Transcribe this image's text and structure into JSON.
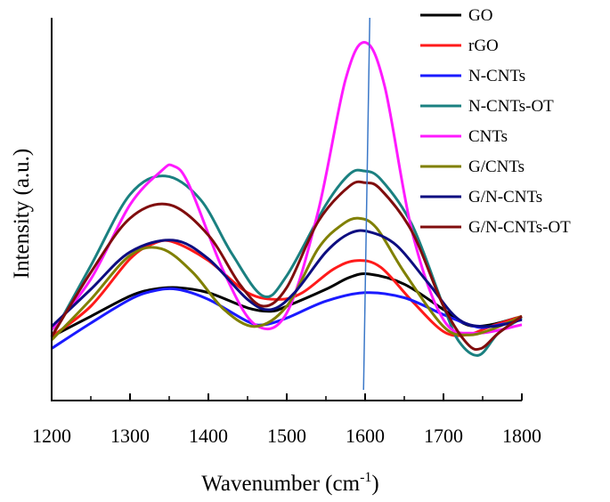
{
  "chart_data": {
    "type": "line",
    "title": "",
    "xlabel": "Wavenumber (cm",
    "xlabel_sup": "-1",
    "xlabel_end": ")",
    "ylabel": "Intensity (a.u.)",
    "xlim": [
      1200,
      1800
    ],
    "ylim": [
      0,
      1
    ],
    "x_ticks": [
      1200,
      1300,
      1400,
      1500,
      1600,
      1700,
      1800
    ],
    "x_tick_labels": [
      "1200",
      "1300",
      "1400",
      "1500",
      "1600",
      "1700",
      "1800"
    ],
    "y_ticks_shown": false,
    "legend_position": "top-right",
    "reference_line": {
      "x": 1598,
      "color": "#3b78c8"
    },
    "baseline": [
      1200,
      1300,
      1400,
      1500,
      1600,
      1700,
      1800
    ],
    "series": [
      {
        "name": "GO",
        "color": "#000000",
        "x": [
          1200,
          1250,
          1300,
          1330,
          1360,
          1400,
          1450,
          1480,
          1500,
          1550,
          1580,
          1605,
          1650,
          1700,
          1730,
          1760,
          1800
        ],
        "y": [
          0.11,
          0.17,
          0.23,
          0.25,
          0.255,
          0.24,
          0.195,
          0.185,
          0.2,
          0.25,
          0.285,
          0.295,
          0.265,
          0.19,
          0.145,
          0.145,
          0.17
        ]
      },
      {
        "name": "rGO",
        "color": "#ff1a1a",
        "x": [
          1200,
          1250,
          1300,
          1330,
          1355,
          1400,
          1450,
          1490,
          1520,
          1560,
          1590,
          1620,
          1660,
          1700,
          1730,
          1760,
          1800
        ],
        "y": [
          0.11,
          0.2,
          0.34,
          0.385,
          0.39,
          0.335,
          0.24,
          0.22,
          0.24,
          0.31,
          0.335,
          0.315,
          0.215,
          0.125,
          0.115,
          0.14,
          0.17
        ]
      },
      {
        "name": "N-CNTs",
        "color": "#1a1aff",
        "x": [
          1200,
          1250,
          1300,
          1330,
          1360,
          1400,
          1450,
          1470,
          1500,
          1550,
          1600,
          1650,
          1700,
          1740,
          1760,
          1800
        ],
        "y": [
          0.075,
          0.15,
          0.22,
          0.245,
          0.25,
          0.22,
          0.155,
          0.145,
          0.165,
          0.215,
          0.24,
          0.225,
          0.175,
          0.14,
          0.14,
          0.16
        ]
      },
      {
        "name": "N-CNTs-OT",
        "color": "#1a8080",
        "x": [
          1200,
          1250,
          1300,
          1345,
          1390,
          1430,
          1470,
          1500,
          1550,
          1580,
          1598,
          1620,
          1660,
          1700,
          1720,
          1745,
          1770,
          1800
        ],
        "y": [
          0.11,
          0.32,
          0.53,
          0.585,
          0.515,
          0.355,
          0.23,
          0.29,
          0.5,
          0.59,
          0.6,
          0.575,
          0.44,
          0.2,
          0.095,
          0.055,
          0.12,
          0.165
        ]
      },
      {
        "name": "CNTs",
        "color": "#ff1aff",
        "x": [
          1200,
          1250,
          1300,
          1340,
          1355,
          1375,
          1420,
          1460,
          1500,
          1540,
          1575,
          1600,
          1625,
          1660,
          1700,
          1740,
          1800
        ],
        "y": [
          0.13,
          0.28,
          0.5,
          0.6,
          0.615,
          0.56,
          0.3,
          0.145,
          0.18,
          0.48,
          0.87,
          0.98,
          0.85,
          0.42,
          0.16,
          0.12,
          0.145
        ]
      },
      {
        "name": "G/CNTs",
        "color": "#808000",
        "x": [
          1200,
          1250,
          1300,
          1340,
          1380,
          1420,
          1460,
          1500,
          1540,
          1570,
          1592,
          1615,
          1650,
          1700,
          1730,
          1760,
          1800
        ],
        "y": [
          0.1,
          0.22,
          0.35,
          0.37,
          0.3,
          0.19,
          0.14,
          0.2,
          0.37,
          0.44,
          0.46,
          0.43,
          0.3,
          0.14,
          0.115,
          0.13,
          0.17
        ]
      },
      {
        "name": "G/N-CNTs",
        "color": "#0d0d80",
        "x": [
          1200,
          1250,
          1300,
          1355,
          1400,
          1450,
          1480,
          1510,
          1550,
          1580,
          1605,
          1640,
          1680,
          1720,
          1760,
          1800
        ],
        "y": [
          0.14,
          0.25,
          0.36,
          0.395,
          0.34,
          0.22,
          0.19,
          0.24,
          0.36,
          0.415,
          0.42,
          0.38,
          0.27,
          0.16,
          0.14,
          0.16
        ]
      },
      {
        "name": "G/N-CNTs-OT",
        "color": "#800d0d",
        "x": [
          1200,
          1250,
          1300,
          1350,
          1400,
          1440,
          1470,
          1500,
          1540,
          1580,
          1600,
          1620,
          1660,
          1700,
          1730,
          1748,
          1770,
          1800
        ],
        "y": [
          0.11,
          0.3,
          0.46,
          0.5,
          0.41,
          0.265,
          0.2,
          0.255,
          0.45,
          0.555,
          0.565,
          0.545,
          0.42,
          0.2,
          0.09,
          0.075,
          0.12,
          0.17
        ]
      }
    ]
  }
}
